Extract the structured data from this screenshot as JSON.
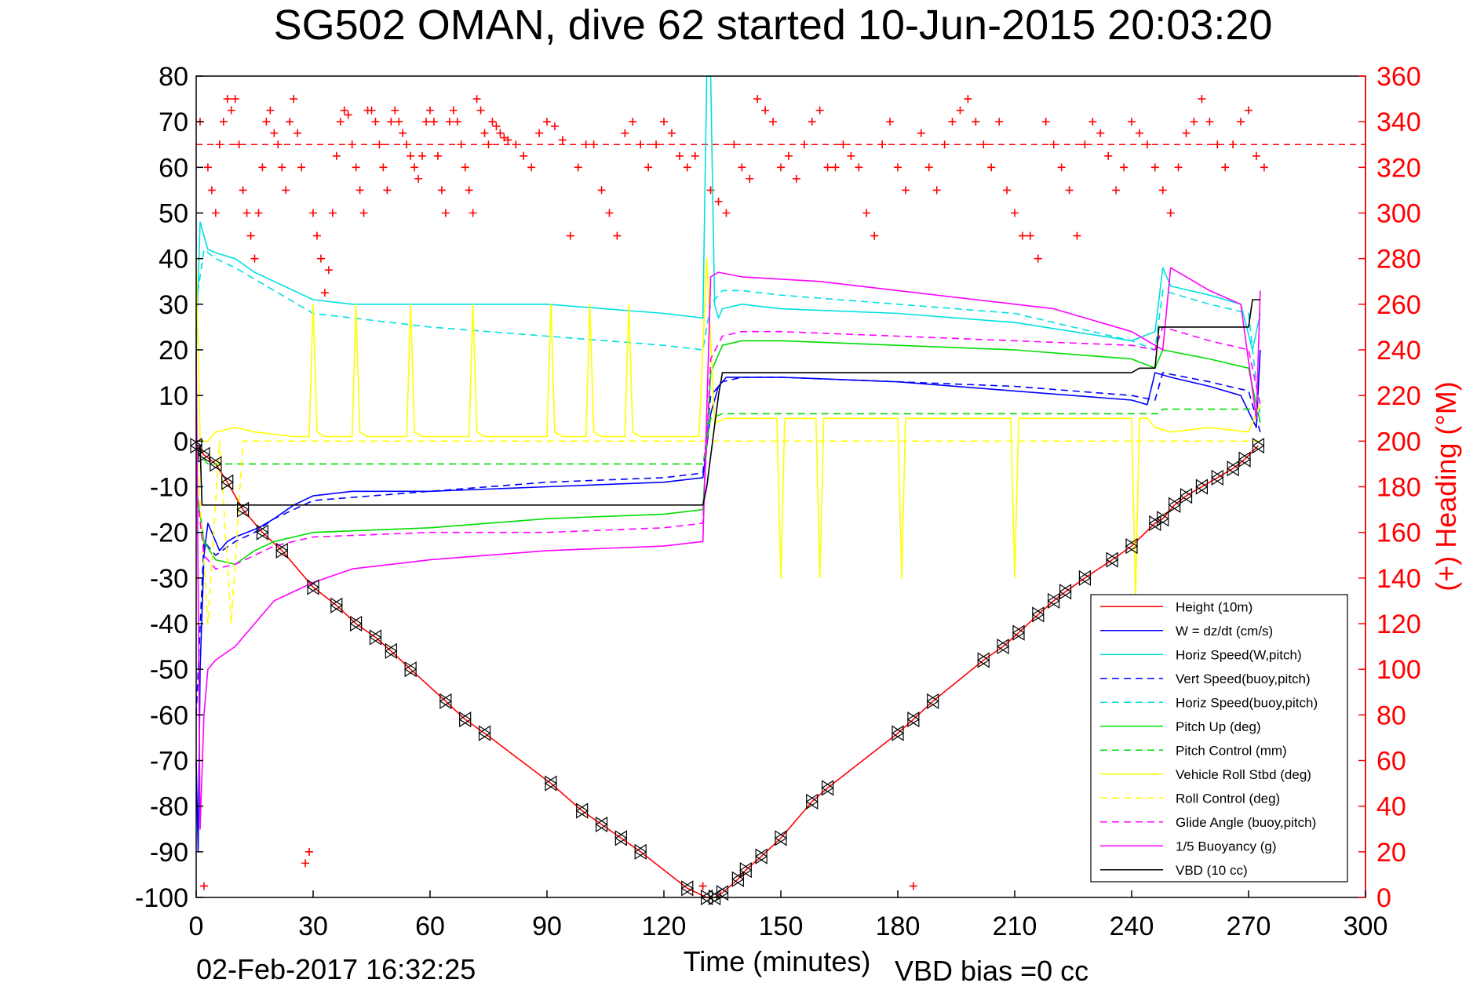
{
  "chart_data": {
    "type": "line",
    "title": "SG502 OMAN, dive 62 started 10-Jun-2015 20:03:20",
    "xlabel": "Time (minutes)",
    "ylabel_right": "(+) Heading (°M)",
    "footer_date": "02-Feb-2017 16:32:25",
    "footer_bias": "VBD bias =0 cc",
    "xlim": [
      0,
      300
    ],
    "ylim": [
      -100,
      80
    ],
    "ylim_right": [
      0,
      360
    ],
    "x_ticks": [
      0,
      30,
      60,
      90,
      120,
      150,
      180,
      210,
      240,
      270,
      300
    ],
    "y_ticks": [
      -100,
      -90,
      -80,
      -70,
      -60,
      -50,
      -40,
      -30,
      -20,
      -10,
      0,
      10,
      20,
      30,
      40,
      50,
      60,
      70,
      80
    ],
    "y_ticks_right": [
      0,
      20,
      40,
      60,
      80,
      100,
      120,
      140,
      160,
      180,
      200,
      220,
      240,
      260,
      280,
      300,
      320,
      340,
      360
    ],
    "heading_reference": 330,
    "legend_position": "lower-right",
    "series": [
      {
        "name": "Height (10m)",
        "color": "#ff0000",
        "dash": "solid",
        "x": [
          0,
          2,
          5,
          8,
          12,
          17,
          22,
          30,
          36,
          41,
          46,
          50,
          55,
          64,
          69,
          74,
          91,
          99,
          104,
          109,
          114,
          126,
          131,
          133,
          135,
          139,
          141,
          145,
          150,
          158,
          162,
          180,
          184,
          189,
          202,
          207,
          211,
          216,
          220,
          223,
          228,
          235,
          240,
          246,
          248,
          251,
          254,
          258,
          262,
          266,
          269,
          272.5
        ],
        "values": [
          -1,
          -3,
          -5,
          -9,
          -15,
          -20,
          -24,
          -32,
          -36,
          -40,
          -43,
          -46,
          -50,
          -57,
          -61,
          -64,
          -75,
          -81,
          -84,
          -87,
          -90,
          -98,
          -100,
          -100,
          -99,
          -96,
          -94,
          -91,
          -87,
          -79,
          -76,
          -64,
          -61,
          -57,
          -48,
          -45,
          -42,
          -38,
          -35,
          -33,
          -30,
          -26,
          -23,
          -18,
          -17,
          -14,
          -12,
          -10,
          -8,
          -6,
          -4,
          -1
        ]
      },
      {
        "name": "W = dz/dt (cm/s)",
        "color": "#0000ff",
        "dash": "solid",
        "x": [
          0,
          0.5,
          1,
          2,
          3,
          4,
          6,
          8,
          10,
          13,
          16,
          20,
          25,
          30,
          40,
          60,
          90,
          120,
          130,
          132,
          134,
          136,
          140,
          150,
          180,
          210,
          240,
          244,
          246,
          250,
          260,
          268,
          272,
          273
        ],
        "values": [
          -70,
          -90,
          -50,
          -25,
          -18,
          -20,
          -24,
          -22,
          -21,
          -20,
          -19,
          -17,
          -14,
          -12,
          -11,
          -11,
          -10,
          -9,
          -8,
          6,
          12,
          14,
          14,
          14,
          13,
          11,
          9,
          8,
          15,
          14,
          12,
          10,
          3,
          20
        ]
      },
      {
        "name": "Horiz Speed(W,pitch)",
        "color": "#00e0e0",
        "dash": "solid",
        "x": [
          0,
          1,
          3,
          6,
          10,
          15,
          20,
          25,
          30,
          40,
          60,
          90,
          120,
          130,
          131,
          132,
          133,
          134,
          135,
          140,
          150,
          180,
          210,
          240,
          246,
          248,
          250,
          260,
          268,
          271,
          273
        ],
        "values": [
          20,
          48,
          42,
          41,
          40,
          37,
          35,
          33,
          31,
          30,
          30,
          30,
          28,
          27,
          80,
          80,
          30,
          27,
          29,
          30,
          29,
          28,
          26,
          22,
          24,
          38,
          34,
          32,
          30,
          20,
          28
        ]
      },
      {
        "name": "Vert Speed(buoy,pitch)",
        "color": "#0000ff",
        "dash": "dashed",
        "x": [
          0,
          2,
          5,
          10,
          15,
          20,
          30,
          60,
          90,
          120,
          130,
          132,
          135,
          140,
          150,
          180,
          210,
          240,
          246,
          248,
          260,
          270,
          273
        ],
        "values": [
          -60,
          -22,
          -25,
          -22,
          -20,
          -17,
          -13,
          -11,
          -9,
          -8,
          -7,
          10,
          13,
          14,
          14,
          13,
          12,
          10,
          9,
          15,
          13,
          11,
          2
        ]
      },
      {
        "name": "Horiz Speed(buoy,pitch)",
        "color": "#00e0e0",
        "dash": "dashed",
        "x": [
          0,
          2,
          5,
          10,
          20,
          30,
          60,
          90,
          120,
          130,
          132,
          135,
          140,
          150,
          180,
          210,
          240,
          246,
          248,
          260,
          270,
          273
        ],
        "values": [
          30,
          42,
          40,
          38,
          33,
          28,
          25,
          23,
          21,
          20,
          30,
          33,
          33,
          32,
          30,
          28,
          22,
          20,
          33,
          30,
          28,
          5
        ]
      },
      {
        "name": "Pitch Up (deg)",
        "color": "#00dd00",
        "dash": "solid",
        "x": [
          0,
          2,
          5,
          10,
          15,
          20,
          30,
          60,
          90,
          120,
          130,
          132,
          135,
          140,
          150,
          180,
          210,
          240,
          246,
          248,
          260,
          270,
          273
        ],
        "values": [
          -10,
          -22,
          -26,
          -27,
          -24,
          -22,
          -20,
          -19,
          -17,
          -16,
          -15,
          15,
          21,
          22,
          22,
          21,
          20,
          18,
          16,
          20,
          18,
          16,
          4
        ]
      },
      {
        "name": "Pitch Control (mm)",
        "color": "#00dd00",
        "dash": "dashed",
        "x": [
          0,
          3,
          6,
          130,
          132,
          135,
          247,
          248,
          273
        ],
        "values": [
          -2,
          -5,
          -5,
          -5,
          5,
          6,
          6,
          7,
          7
        ]
      },
      {
        "name": "Vehicle Roll Stbd (deg)",
        "color": "#ffff00",
        "dash": "solid",
        "x": [
          0,
          1,
          3,
          5,
          10,
          15,
          25,
          29,
          30,
          31,
          33,
          40,
          41,
          42,
          44,
          54,
          55,
          56,
          58,
          70,
          71,
          72,
          74,
          90,
          91,
          92,
          94,
          100,
          101,
          102,
          104,
          110,
          111,
          112,
          114,
          129,
          131,
          133,
          136,
          149,
          150,
          151,
          153,
          159,
          160,
          161,
          163,
          180,
          181,
          182,
          184,
          209,
          210,
          211,
          213,
          240,
          241,
          242,
          244,
          246,
          250,
          260,
          270,
          273
        ],
        "values": [
          40,
          0,
          0,
          2,
          3,
          2,
          1,
          1,
          30,
          2,
          1,
          1,
          30,
          2,
          1,
          1,
          30,
          2,
          1,
          1,
          30,
          2,
          1,
          1,
          30,
          2,
          1,
          1,
          30,
          2,
          1,
          1,
          30,
          2,
          1,
          1,
          40,
          4,
          5,
          5,
          -30,
          5,
          5,
          5,
          -30,
          5,
          5,
          5,
          -30,
          5,
          5,
          5,
          -30,
          5,
          5,
          5,
          -35,
          5,
          5,
          3,
          2,
          3,
          2,
          8
        ]
      },
      {
        "name": "Roll Control (deg)",
        "color": "#ffff00",
        "dash": "dashed",
        "x": [
          0,
          3,
          6,
          9,
          12,
          15,
          130,
          132,
          135,
          240,
          246,
          248,
          273
        ],
        "values": [
          0,
          -40,
          0,
          -40,
          0,
          0,
          0,
          0,
          0,
          0,
          0,
          0,
          0
        ]
      },
      {
        "name": "Glide Angle (buoy,pitch)",
        "color": "#ff00ff",
        "dash": "dashed",
        "x": [
          0,
          2,
          5,
          10,
          15,
          20,
          30,
          60,
          90,
          120,
          130,
          132,
          135,
          140,
          150,
          180,
          210,
          240,
          246,
          248,
          260,
          270,
          273
        ],
        "values": [
          -10,
          -25,
          -28,
          -27,
          -25,
          -23,
          -21,
          -20,
          -20,
          -19,
          -18,
          18,
          23,
          24,
          24,
          23,
          22,
          21,
          20,
          25,
          22,
          20,
          8
        ]
      },
      {
        "name": "1/5 Buoyancy (g)",
        "color": "#ff00ff",
        "dash": "solid",
        "x": [
          0,
          1,
          2,
          3,
          5,
          10,
          15,
          20,
          30,
          40,
          60,
          90,
          120,
          130,
          132,
          134,
          140,
          160,
          180,
          200,
          220,
          240,
          248,
          250,
          260,
          268,
          272,
          273
        ],
        "values": [
          20,
          -85,
          -60,
          -50,
          -48,
          -45,
          -40,
          -35,
          -31,
          -28,
          -26,
          -24,
          -23,
          -22,
          36,
          37,
          36,
          35,
          33,
          31,
          29,
          24,
          20,
          38,
          33,
          30,
          5,
          33
        ]
      },
      {
        "name": "VBD (10 cc)",
        "color": "#000000",
        "dash": "solid",
        "x": [
          0,
          1,
          1.5,
          2,
          130,
          131,
          134,
          135,
          240,
          242,
          246,
          247,
          270,
          271,
          273
        ],
        "values": [
          -1,
          -1,
          -14,
          -14,
          -14,
          -10,
          10,
          15,
          15,
          16,
          16,
          25,
          25,
          31,
          31
        ]
      }
    ],
    "heading": {
      "name": "Heading",
      "color": "#ff0000",
      "marker": "+",
      "x": [
        1,
        2,
        3,
        4,
        5,
        6,
        7,
        8,
        9,
        10,
        11,
        12,
        13,
        14,
        15,
        16,
        17,
        18,
        19,
        20,
        21,
        22,
        23,
        24,
        25,
        26,
        27,
        28,
        29,
        30,
        31,
        32,
        33,
        34,
        35,
        36,
        37,
        38,
        39,
        40,
        41,
        42,
        43,
        44,
        45,
        46,
        47,
        48,
        49,
        50,
        51,
        52,
        53,
        54,
        55,
        56,
        57,
        58,
        59,
        60,
        61,
        62,
        63,
        64,
        65,
        66,
        67,
        68,
        69,
        70,
        71,
        72,
        73,
        74,
        75,
        76,
        77,
        78,
        79,
        80,
        82,
        84,
        86,
        88,
        90,
        92,
        94,
        96,
        98,
        100,
        102,
        104,
        106,
        108,
        110,
        112,
        114,
        116,
        118,
        120,
        122,
        124,
        126,
        128,
        130,
        132,
        134,
        136,
        138,
        140,
        142,
        144,
        146,
        148,
        150,
        152,
        154,
        156,
        158,
        160,
        162,
        164,
        166,
        168,
        170,
        172,
        174,
        176,
        178,
        180,
        182,
        184,
        186,
        188,
        190,
        192,
        194,
        196,
        198,
        200,
        202,
        204,
        206,
        208,
        210,
        212,
        214,
        216,
        218,
        220,
        222,
        224,
        226,
        228,
        230,
        232,
        234,
        236,
        238,
        240,
        242,
        244,
        246,
        248,
        250,
        252,
        254,
        256,
        258,
        260,
        262,
        264,
        266,
        268,
        270,
        272,
        274
      ],
      "values": [
        340,
        5,
        320,
        310,
        300,
        330,
        340,
        350,
        345,
        350,
        330,
        310,
        300,
        290,
        280,
        300,
        320,
        340,
        345,
        335,
        330,
        320,
        310,
        340,
        350,
        335,
        320,
        15,
        20,
        300,
        290,
        280,
        265,
        275,
        300,
        325,
        340,
        345,
        343,
        330,
        320,
        310,
        300,
        345,
        345,
        340,
        330,
        320,
        310,
        340,
        345,
        340,
        335,
        330,
        325,
        320,
        315,
        325,
        340,
        345,
        340,
        325,
        310,
        300,
        340,
        345,
        340,
        330,
        320,
        310,
        300,
        350,
        345,
        335,
        330,
        340,
        338,
        335,
        333,
        332,
        330,
        325,
        320,
        335,
        340,
        338,
        332,
        290,
        320,
        330,
        330,
        310,
        300,
        290,
        335,
        340,
        330,
        320,
        330,
        340,
        335,
        325,
        320,
        325,
        5,
        310,
        305,
        300,
        330,
        320,
        315,
        350,
        345,
        340,
        320,
        325,
        315,
        330,
        340,
        345,
        320,
        320,
        330,
        325,
        320,
        300,
        290,
        330,
        340,
        320,
        310,
        5,
        335,
        320,
        310,
        330,
        340,
        345,
        350,
        340,
        330,
        320,
        340,
        310,
        300,
        290,
        290,
        280,
        340,
        330,
        320,
        310,
        290,
        330,
        340,
        335,
        325,
        310,
        320,
        340,
        335,
        330,
        320,
        310,
        300,
        320,
        335,
        340,
        350,
        340,
        330,
        320,
        330,
        340,
        345,
        325,
        320
      ]
    }
  }
}
